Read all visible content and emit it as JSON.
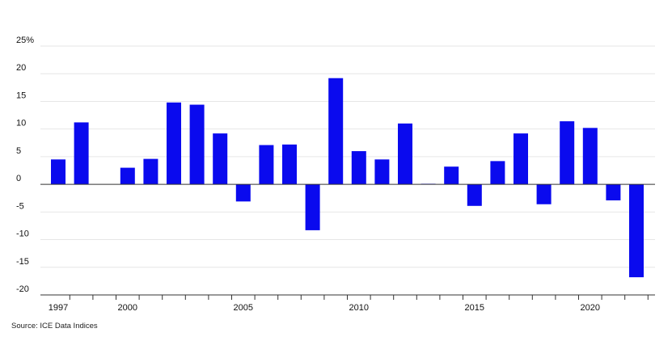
{
  "chart_data": {
    "type": "bar",
    "x": [
      1997,
      1998,
      1999,
      2000,
      2001,
      2002,
      2003,
      2004,
      2005,
      2006,
      2007,
      2008,
      2009,
      2010,
      2011,
      2012,
      2013,
      2014,
      2015,
      2016,
      2017,
      2018,
      2019,
      2020,
      2021,
      2022
    ],
    "values": [
      4.5,
      11.2,
      0,
      3.0,
      4.6,
      14.8,
      14.4,
      9.2,
      -3.1,
      7.1,
      7.2,
      -8.3,
      19.2,
      6.0,
      4.5,
      11.0,
      0.1,
      3.2,
      -3.9,
      4.2,
      9.2,
      -3.6,
      11.4,
      10.2,
      -2.9,
      -16.8
    ],
    "xticks": [
      {
        "value": 1997,
        "label": "1997"
      },
      {
        "value": 2000,
        "label": "2000"
      },
      {
        "value": 2005,
        "label": "2005"
      },
      {
        "value": 2010,
        "label": "2010"
      },
      {
        "value": 2015,
        "label": "2015"
      },
      {
        "value": 2020,
        "label": "2020"
      }
    ],
    "yticks": [
      {
        "value": 25,
        "label": "25%"
      },
      {
        "value": 20,
        "label": "20"
      },
      {
        "value": 15,
        "label": "15"
      },
      {
        "value": 10,
        "label": "10"
      },
      {
        "value": 5,
        "label": "5"
      },
      {
        "value": 0,
        "label": "0"
      },
      {
        "value": -5,
        "label": "-5"
      },
      {
        "value": -10,
        "label": "-10"
      },
      {
        "value": -15,
        "label": "-15"
      },
      {
        "value": -20,
        "label": "-20"
      }
    ],
    "ylim": [
      -20,
      25
    ],
    "xlim": [
      1996.5,
      2022.5
    ],
    "grid": true,
    "bar_color": "#0a0aee",
    "title": "",
    "xlabel": "",
    "ylabel": ""
  },
  "source": "Source: ICE Data Indices"
}
